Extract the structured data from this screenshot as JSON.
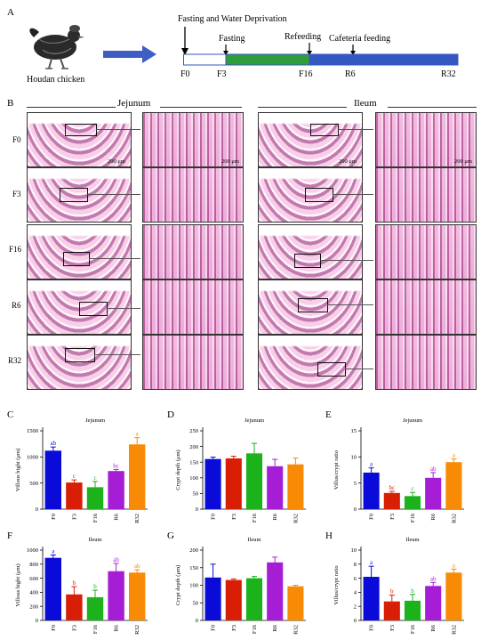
{
  "panel_a": {
    "letter": "A",
    "subject_label": "Houdan chicken",
    "timeline_title": "Fasting and Water Deprivation",
    "stage_labels": [
      "Fasting",
      "Refeeding",
      "Cafeteria feeding"
    ],
    "tick_labels": [
      "F0",
      "F3",
      "F16",
      "R6",
      "R32"
    ],
    "colors": {
      "arrow": "#3d5fc4",
      "water": "#ffffff",
      "fasting": "#2e9e3c",
      "refeeding": "#3557c2"
    }
  },
  "panel_b": {
    "letter": "B",
    "section_titles": [
      "Jejunum",
      "Ileum"
    ],
    "row_labels": [
      "F0",
      "F3",
      "F16",
      "R6",
      "R32"
    ],
    "scale_label": "200 μm"
  },
  "chart_data": [
    {
      "panel": "C",
      "type": "bar",
      "title": "Jejunum",
      "ylabel": "Villous hight (μm)",
      "categories": [
        "F0",
        "F3",
        "F16",
        "R6",
        "R32"
      ],
      "ylim": [
        0,
        1500
      ],
      "yticks": [
        0,
        500,
        1000,
        1500
      ],
      "values": [
        1120,
        510,
        420,
        730,
        1240
      ],
      "errors": [
        70,
        50,
        110,
        30,
        130
      ],
      "letters": [
        "ab",
        "c",
        "c",
        "bc",
        "a"
      ],
      "colors": [
        "#0b0bd9",
        "#d81e05",
        "#1bb21b",
        "#a51ed6",
        "#f98a05"
      ]
    },
    {
      "panel": "D",
      "type": "bar",
      "title": "Jejunum",
      "ylabel": "Crypt depth (μm)",
      "categories": [
        "F0",
        "F3",
        "F16",
        "R6",
        "R32"
      ],
      "ylim": [
        0,
        250
      ],
      "yticks": [
        0,
        50,
        100,
        150,
        200,
        250
      ],
      "values": [
        160,
        162,
        178,
        137,
        143
      ],
      "errors": [
        6,
        7,
        32,
        22,
        20
      ],
      "letters": [
        "",
        "",
        "",
        "",
        ""
      ],
      "colors": [
        "#0b0bd9",
        "#d81e05",
        "#1bb21b",
        "#a51ed6",
        "#f98a05"
      ]
    },
    {
      "panel": "E",
      "type": "bar",
      "title": "Jejunum",
      "ylabel": "Villus/crypt ratio",
      "categories": [
        "F0",
        "F3",
        "F16",
        "R6",
        "R32"
      ],
      "ylim": [
        0,
        15
      ],
      "yticks": [
        0,
        5,
        10,
        15
      ],
      "values": [
        7.0,
        3.1,
        2.5,
        6.0,
        9.0
      ],
      "errors": [
        0.9,
        0.3,
        0.7,
        1.0,
        0.6
      ],
      "letters": [
        "a",
        "bc",
        "c",
        "ab",
        "a"
      ],
      "colors": [
        "#0b0bd9",
        "#d81e05",
        "#1bb21b",
        "#a51ed6",
        "#f98a05"
      ]
    },
    {
      "panel": "F",
      "type": "bar",
      "title": "Ileum",
      "ylabel": "Villous hight (μm)",
      "categories": [
        "F0",
        "F3",
        "F16",
        "R6",
        "R32"
      ],
      "ylim": [
        0,
        1000
      ],
      "yticks": [
        0,
        200,
        400,
        600,
        800,
        1000
      ],
      "values": [
        890,
        370,
        330,
        700,
        680
      ],
      "errors": [
        40,
        110,
        100,
        110,
        40
      ],
      "letters": [
        "a",
        "b",
        "b",
        "ab",
        "ab"
      ],
      "colors": [
        "#0b0bd9",
        "#d81e05",
        "#1bb21b",
        "#a51ed6",
        "#f98a05"
      ]
    },
    {
      "panel": "G",
      "type": "bar",
      "title": "Ileum",
      "ylabel": "Crypt depth (μm)",
      "categories": [
        "F0",
        "F3",
        "F16",
        "R6",
        "R32"
      ],
      "ylim": [
        0,
        200
      ],
      "yticks": [
        0,
        50,
        100,
        150,
        200
      ],
      "values": [
        122,
        115,
        120,
        165,
        97
      ],
      "errors": [
        38,
        3,
        5,
        15,
        3
      ],
      "letters": [
        "",
        "",
        "",
        "",
        ""
      ],
      "colors": [
        "#0b0bd9",
        "#d81e05",
        "#1bb21b",
        "#a51ed6",
        "#f98a05"
      ]
    },
    {
      "panel": "H",
      "type": "bar",
      "title": "Ileum",
      "ylabel": "Villus/crypt ratio",
      "categories": [
        "F0",
        "F3",
        "F16",
        "R6",
        "R32"
      ],
      "ylim": [
        0,
        10
      ],
      "yticks": [
        0,
        2,
        4,
        6,
        8,
        10
      ],
      "values": [
        6.2,
        2.7,
        2.8,
        4.9,
        6.8
      ],
      "errors": [
        1.5,
        0.9,
        0.9,
        0.5,
        0.5
      ],
      "letters": [
        "a",
        "b",
        "b",
        "ab",
        "a"
      ],
      "colors": [
        "#0b0bd9",
        "#d81e05",
        "#1bb21b",
        "#a51ed6",
        "#f98a05"
      ]
    }
  ]
}
